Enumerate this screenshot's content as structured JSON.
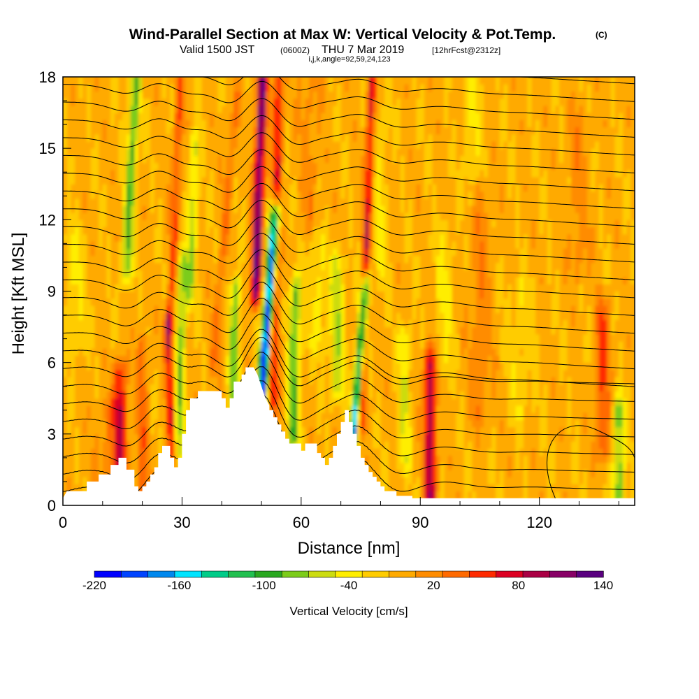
{
  "header": {
    "title": "Wind-Parallel Section at Max W: Vertical Velocity & Pot.Temp.",
    "copyright": "(C)",
    "valid_prefix": "Valid 1500 JST",
    "valid_utc": "(0600Z)",
    "valid_date": "THU 7 Mar 2019",
    "forecast": "[12hrFcst@2312z]",
    "params": "i,j,k,angle=92,59,24,123"
  },
  "chart_data": {
    "type": "heatmap",
    "title": "Wind-Parallel Section at Max W: Vertical Velocity & Pot.Temp.",
    "xlabel": "Distance [nm]",
    "ylabel": "Height [Kft MSL]",
    "xlim": [
      0,
      144
    ],
    "ylim": [
      0,
      18
    ],
    "x_ticks": [
      0,
      30,
      60,
      90,
      120
    ],
    "y_ticks": [
      0,
      3,
      6,
      9,
      12,
      15,
      18
    ],
    "colorbar": {
      "title": "Vertical Velocity [cm/s]",
      "levels": [
        -220,
        -200,
        -180,
        -160,
        -140,
        -120,
        -100,
        -80,
        -60,
        -40,
        -20,
        0,
        20,
        40,
        60,
        80,
        100,
        120,
        140
      ],
      "labels": [
        -220,
        -160,
        -100,
        -40,
        20,
        80,
        140
      ],
      "colors": [
        "#0000ff",
        "#0044ff",
        "#0088ee",
        "#00e4ff",
        "#00cc88",
        "#22c050",
        "#2aa820",
        "#7ccc1a",
        "#ccdc10",
        "#ffee00",
        "#ffcc00",
        "#ffaa00",
        "#ff8c00",
        "#ff6a00",
        "#ff2a00",
        "#dd0022",
        "#aa0044",
        "#880066",
        "#5a0080"
      ]
    },
    "terrain": [
      [
        0,
        0.3
      ],
      [
        1,
        0.6
      ],
      [
        6,
        0.6
      ],
      [
        6,
        1.0
      ],
      [
        9,
        1.0
      ],
      [
        9,
        1.3
      ],
      [
        12,
        1.3
      ],
      [
        12,
        1.7
      ],
      [
        14,
        1.7
      ],
      [
        14,
        2.0
      ],
      [
        16,
        2.0
      ],
      [
        16,
        1.5
      ],
      [
        18,
        1.5
      ],
      [
        18,
        0.8
      ],
      [
        19,
        0.8
      ],
      [
        19,
        0.6
      ],
      [
        20,
        0.6
      ],
      [
        20,
        0.8
      ],
      [
        21,
        0.8
      ],
      [
        21,
        1.0
      ],
      [
        22,
        1.0
      ],
      [
        22,
        1.3
      ],
      [
        23,
        1.3
      ],
      [
        23,
        1.6
      ],
      [
        24,
        1.6
      ],
      [
        24,
        2.2
      ],
      [
        25,
        2.2
      ],
      [
        25,
        2.5
      ],
      [
        27,
        2.5
      ],
      [
        27,
        2.0
      ],
      [
        28,
        2.0
      ],
      [
        28,
        1.6
      ],
      [
        29,
        1.6
      ],
      [
        29,
        2.0
      ],
      [
        30,
        2.0
      ],
      [
        30,
        3.0
      ],
      [
        31,
        3.0
      ],
      [
        31,
        4.0
      ],
      [
        32,
        4.0
      ],
      [
        32,
        4.5
      ],
      [
        34,
        4.5
      ],
      [
        34,
        4.8
      ],
      [
        40,
        4.8
      ],
      [
        40,
        4.5
      ],
      [
        41,
        4.5
      ],
      [
        41,
        4.1
      ],
      [
        42,
        4.1
      ],
      [
        42,
        4.5
      ],
      [
        43,
        4.5
      ],
      [
        43,
        5.2
      ],
      [
        45,
        5.2
      ],
      [
        45,
        5.5
      ],
      [
        46,
        5.5
      ],
      [
        46,
        5.8
      ],
      [
        48,
        5.8
      ],
      [
        49,
        5.5
      ],
      [
        50,
        5.0
      ],
      [
        51,
        4.5
      ],
      [
        52,
        4.2
      ],
      [
        52,
        4.0
      ],
      [
        53,
        4.0
      ],
      [
        53,
        3.7
      ],
      [
        54,
        3.7
      ],
      [
        54,
        3.4
      ],
      [
        55,
        3.4
      ],
      [
        55,
        3.1
      ],
      [
        56,
        3.1
      ],
      [
        56,
        2.8
      ],
      [
        57,
        2.8
      ],
      [
        57,
        2.6
      ],
      [
        60,
        2.6
      ],
      [
        60,
        2.3
      ],
      [
        61,
        2.3
      ],
      [
        61,
        2.6
      ],
      [
        64,
        2.6
      ],
      [
        64,
        2.2
      ],
      [
        65,
        2.2
      ],
      [
        65,
        2.0
      ],
      [
        66,
        2.0
      ],
      [
        66,
        1.7
      ],
      [
        67,
        1.7
      ],
      [
        67,
        2.0
      ],
      [
        68,
        2.0
      ],
      [
        68,
        2.5
      ],
      [
        69,
        2.5
      ],
      [
        69,
        3.0
      ],
      [
        70,
        3.0
      ],
      [
        70,
        3.5
      ],
      [
        71,
        3.5
      ],
      [
        71,
        4.0
      ],
      [
        72,
        4.0
      ],
      [
        72,
        3.5
      ],
      [
        73,
        3.5
      ],
      [
        73,
        3.0
      ],
      [
        74,
        3.0
      ],
      [
        74,
        2.5
      ],
      [
        75,
        2.5
      ],
      [
        75,
        2.0
      ],
      [
        76,
        2.0
      ],
      [
        76,
        1.7
      ],
      [
        77,
        1.7
      ],
      [
        77,
        1.4
      ],
      [
        78,
        1.4
      ],
      [
        78,
        1.2
      ],
      [
        79,
        1.2
      ],
      [
        79,
        1.0
      ],
      [
        80,
        1.0
      ],
      [
        80,
        0.8
      ],
      [
        81,
        0.8
      ],
      [
        81,
        0.6
      ],
      [
        84,
        0.6
      ],
      [
        84,
        0.4
      ],
      [
        88,
        0.4
      ],
      [
        88,
        0.3
      ],
      [
        144,
        0.3
      ]
    ]
  }
}
